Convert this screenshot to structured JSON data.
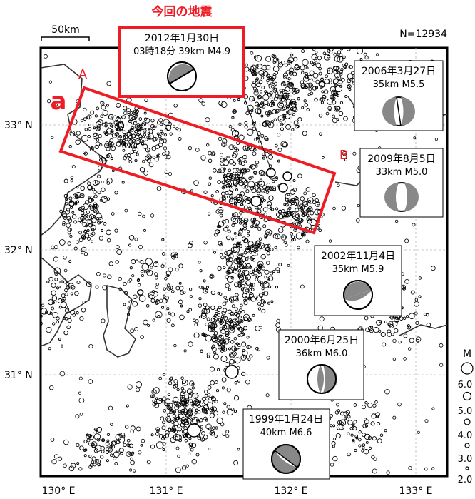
{
  "title": "今回の地震",
  "count_label": "N=12934",
  "scale_label": "50km",
  "section": {
    "start_label": "A",
    "end_label": "B",
    "area_label": "a"
  },
  "lat_labels": [
    "33° N",
    "32° N",
    "31° N"
  ],
  "lon_labels": [
    "130° E",
    "131° E",
    "132° E",
    "133° E"
  ],
  "magnitude_legend": {
    "header": "M",
    "values": [
      "6.0",
      "5.0",
      "4.0",
      "3.0",
      "2.0"
    ]
  },
  "mechanisms": [
    {
      "date": "2012年1月30日",
      "line2": "03時18分 39km  M4.9",
      "highlight": true
    },
    {
      "date": "2006年3月27日",
      "line2": "35km  M5.5"
    },
    {
      "date": "2009年8月5日",
      "line2": "33km  M5.0"
    },
    {
      "date": "2002年11月4日",
      "line2": "35km  M5.9"
    },
    {
      "date": "2000年6月25日",
      "line2": "36km  M6.0"
    },
    {
      "date": "1999年1月24日",
      "line2": "40km  M6.6"
    }
  ],
  "colors": {
    "highlight": "#ee1c24",
    "quake": "#000000",
    "coast": "#333333",
    "grid": "#b8b8b8"
  }
}
